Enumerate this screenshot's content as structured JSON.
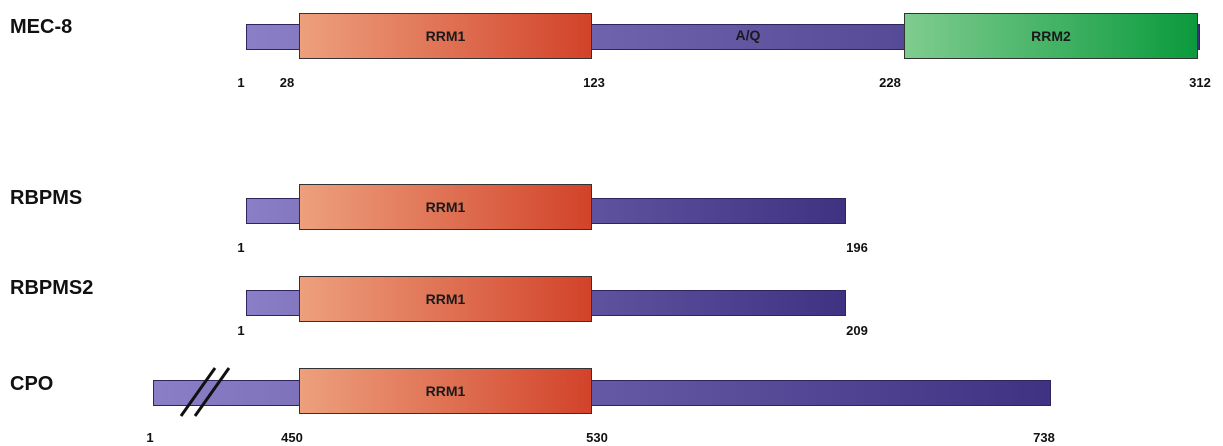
{
  "proteins": [
    {
      "name": "MEC-8",
      "domains": [
        {
          "label": "RRM1",
          "start": 28,
          "end": 123,
          "type": "rrm1"
        },
        {
          "label": "RRM2",
          "start": 228,
          "end": 312,
          "type": "rrm2"
        }
      ],
      "regions": [
        {
          "label": "A/Q"
        }
      ],
      "positions": [
        "1",
        "28",
        "123",
        "228",
        "312"
      ]
    },
    {
      "name": "RBPMS",
      "domains": [
        {
          "label": "RRM1",
          "type": "rrm1"
        }
      ],
      "positions": [
        "1",
        "196"
      ]
    },
    {
      "name": "RBPMS2",
      "domains": [
        {
          "label": "RRM1",
          "type": "rrm1"
        }
      ],
      "positions": [
        "1",
        "209"
      ]
    },
    {
      "name": "CPO",
      "domains": [
        {
          "label": "RRM1",
          "start": 450,
          "end": 530,
          "type": "rrm1"
        }
      ],
      "positions": [
        "1",
        "450",
        "530",
        "738"
      ],
      "truncated": true
    }
  ],
  "colors": {
    "chain_start": "#8a7fc6",
    "chain_end": "#3f3282",
    "rrm1_start": "#eda07d",
    "rrm1_end": "#d2432a",
    "rrm2_start": "#7fcc8f",
    "rrm2_end": "#0b9a3d"
  }
}
